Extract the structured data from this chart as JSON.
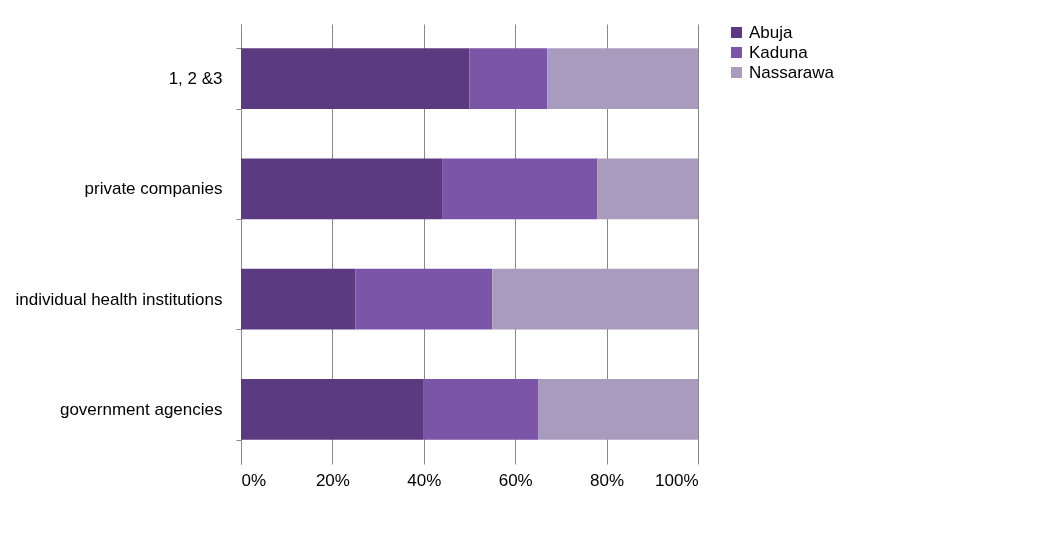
{
  "chart_data": {
    "type": "bar",
    "orientation": "horizontal",
    "stacked": true,
    "categories": [
      "1, 2 &3",
      "private companies",
      "individual health institutions",
      "government agencies"
    ],
    "series": [
      {
        "name": "Abuja",
        "color": "#5b3a80",
        "values": [
          50,
          44,
          25,
          40
        ]
      },
      {
        "name": "Kaduna",
        "color": "#7b55a8",
        "values": [
          17,
          34,
          30,
          25
        ]
      },
      {
        "name": "Nassarawa",
        "color": "#a99bbd",
        "values": [
          33,
          22,
          45,
          35
        ]
      }
    ],
    "xlim": [
      0,
      100
    ],
    "xticks": [
      {
        "value": 0,
        "label": "0%"
      },
      {
        "value": 20,
        "label": "20%"
      },
      {
        "value": 40,
        "label": "40%"
      },
      {
        "value": 60,
        "label": "60%"
      },
      {
        "value": 80,
        "label": "80%"
      },
      {
        "value": 100,
        "label": "100%"
      }
    ],
    "grid": "x",
    "legend": "right"
  }
}
